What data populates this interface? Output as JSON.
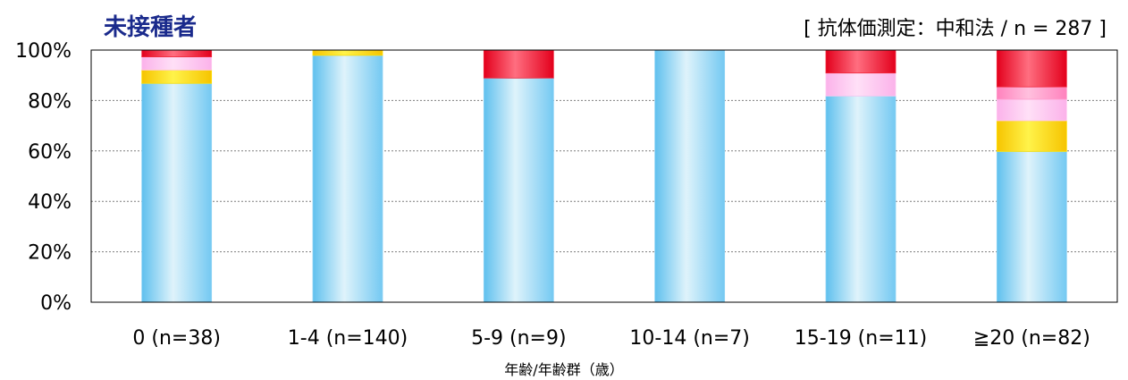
{
  "title": "未接種者",
  "note": "[ 抗体価測定：中和法 / n = 287 ]",
  "colors": {
    "blue": "#8fd3f4",
    "yellow": "#ffe000",
    "light_pink": "#ffc8f0",
    "pink": "#ff9ccc",
    "red": "#f0283c",
    "grid": "#7f7f7f",
    "title": "#1a2a8c"
  },
  "chart_data": {
    "type": "bar",
    "stacked": true,
    "categories": [
      "0 (n=38)",
      "1-4 (n=140)",
      "5-9 (n=9)",
      "10-14 (n=7)",
      "15-19 (n=11)",
      "≧20 (n=82)"
    ],
    "xlabel": "年齢/年齢群（歳）",
    "ylabel": "",
    "ylim": [
      0,
      100
    ],
    "yticks": [
      "0%",
      "20%",
      "40%",
      "60%",
      "80%",
      "100%"
    ],
    "grid": true,
    "series": [
      {
        "color": "blue",
        "values": [
          86.8,
          97.9,
          88.9,
          100,
          81.8,
          59.8
        ]
      },
      {
        "color": "yellow",
        "values": [
          5.3,
          2.1,
          0,
          0,
          0,
          12.2
        ]
      },
      {
        "color": "light_pink",
        "values": [
          5.2,
          0,
          0,
          0,
          9.1,
          8.5
        ]
      },
      {
        "color": "pink",
        "values": [
          0,
          0,
          0,
          0,
          0,
          4.9
        ]
      },
      {
        "color": "red",
        "values": [
          2.7,
          0,
          11.1,
          0,
          9.1,
          14.6
        ]
      }
    ]
  }
}
